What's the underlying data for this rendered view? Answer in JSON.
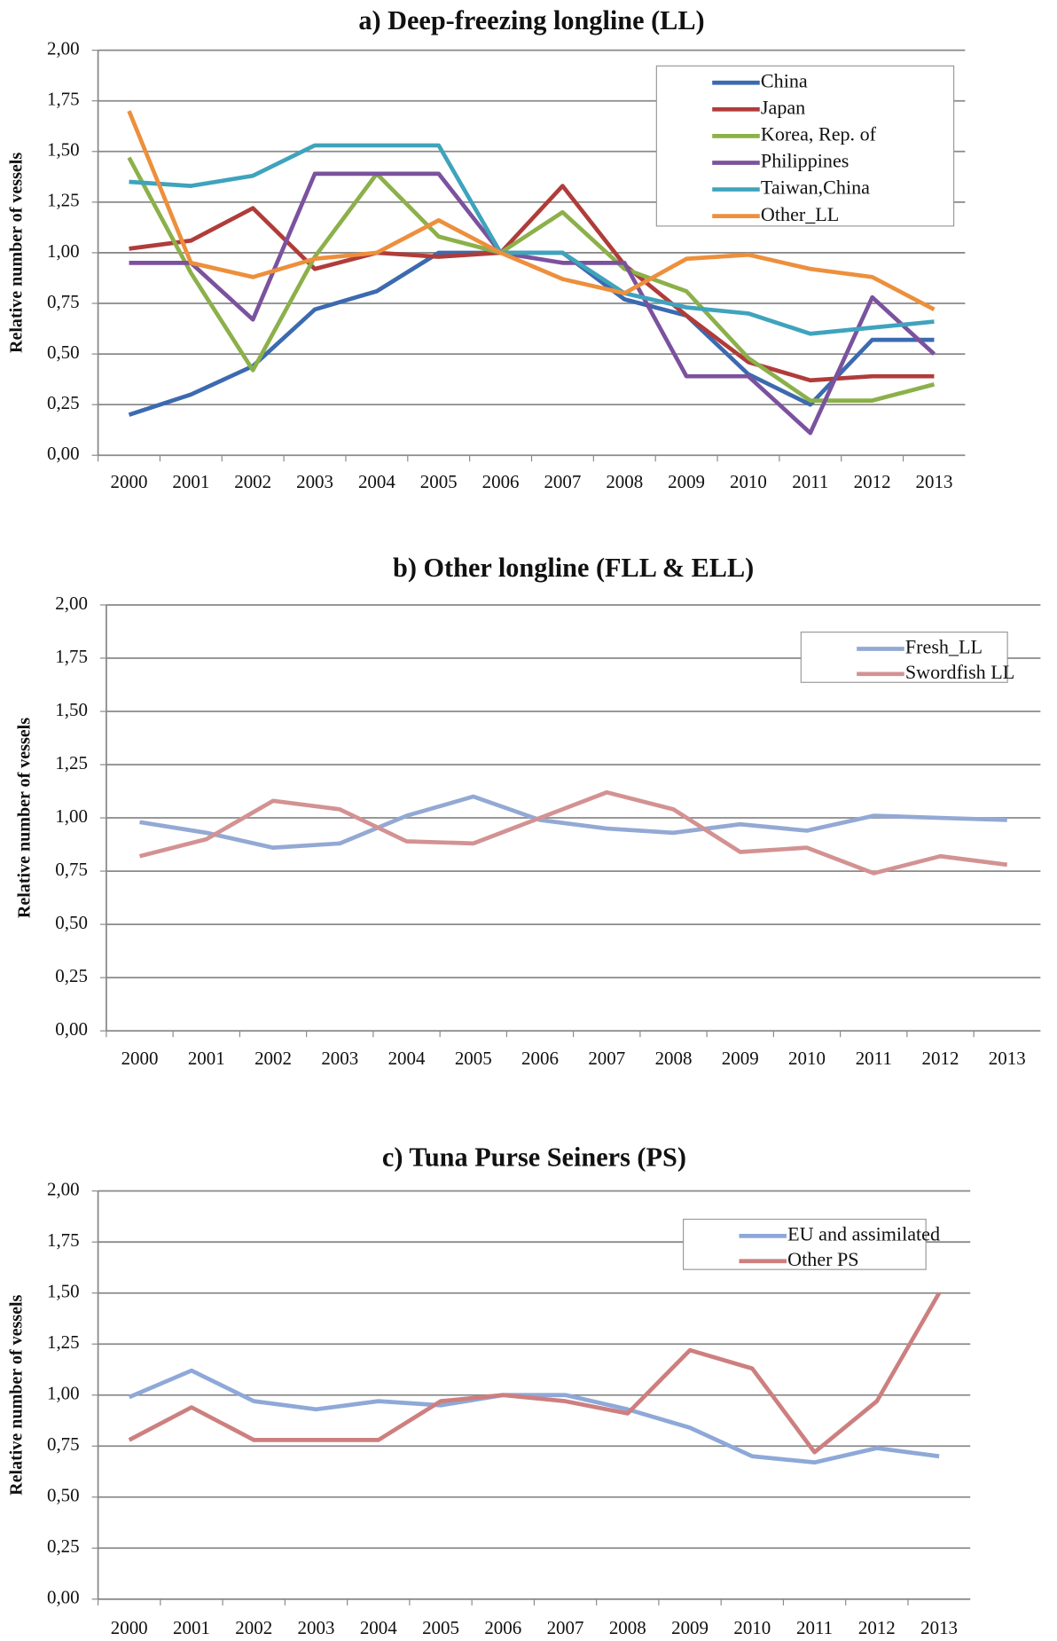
{
  "chart_data": [
    {
      "type": "line",
      "title": "a) Deep-freezing longline (LL)",
      "y_label": "Relative number of vessels",
      "categories": [
        "2000",
        "2001",
        "2002",
        "2003",
        "2004",
        "2005",
        "2006",
        "2007",
        "2008",
        "2009",
        "2010",
        "2011",
        "2012",
        "2013"
      ],
      "ylim": [
        0,
        2
      ],
      "yticks": [
        {
          "value": 0,
          "label": "0,00"
        },
        {
          "value": 0.25,
          "label": "0,25"
        },
        {
          "value": 0.5,
          "label": "0,50"
        },
        {
          "value": 0.75,
          "label": "0,75"
        },
        {
          "value": 1,
          "label": "1,00"
        },
        {
          "value": 1.25,
          "label": "1,25"
        },
        {
          "value": 1.5,
          "label": "1,50"
        },
        {
          "value": 1.75,
          "label": "1,75"
        },
        {
          "value": 2,
          "label": "2,00"
        }
      ],
      "grid": true,
      "legend": "upper right",
      "series": [
        {
          "name": "China",
          "color": "#3c6ab0",
          "values": [
            0.2,
            0.3,
            0.44,
            0.72,
            0.81,
            1.0,
            1.0,
            1.0,
            0.77,
            0.69,
            0.4,
            0.25,
            0.57,
            0.57
          ]
        },
        {
          "name": "Japan",
          "color": "#b03c3a",
          "values": [
            1.02,
            1.06,
            1.22,
            0.92,
            1.0,
            0.98,
            1.0,
            1.33,
            0.94,
            0.69,
            0.46,
            0.37,
            0.39,
            0.39
          ]
        },
        {
          "name": "Korea, Rep. of",
          "color": "#8cb04a",
          "values": [
            1.47,
            0.9,
            0.42,
            0.98,
            1.39,
            1.08,
            1.0,
            1.2,
            0.92,
            0.81,
            0.48,
            0.27,
            0.27,
            0.35
          ]
        },
        {
          "name": "Philippines",
          "color": "#7b529e",
          "values": [
            0.95,
            0.95,
            0.67,
            1.39,
            1.39,
            1.39,
            1.0,
            0.95,
            0.95,
            0.39,
            0.39,
            0.11,
            0.78,
            0.5
          ]
        },
        {
          "name": "Taiwan,China",
          "color": "#3fa3bc",
          "values": [
            1.35,
            1.33,
            1.38,
            1.53,
            1.53,
            1.53,
            1.0,
            1.0,
            0.8,
            0.73,
            0.7,
            0.6,
            0.63,
            0.66
          ]
        },
        {
          "name": "Other_LL",
          "color": "#ed8f3c",
          "values": [
            1.7,
            0.95,
            0.88,
            0.97,
            1.0,
            1.16,
            1.0,
            0.87,
            0.8,
            0.97,
            0.99,
            0.92,
            0.88,
            0.72
          ]
        }
      ]
    },
    {
      "type": "line",
      "title": "b) Other longline (FLL & ELL)",
      "y_label": "Relative number of vessels",
      "categories": [
        "2000",
        "2001",
        "2002",
        "2003",
        "2004",
        "2005",
        "2006",
        "2007",
        "2008",
        "2009",
        "2010",
        "2011",
        "2012",
        "2013"
      ],
      "ylim": [
        0,
        2
      ],
      "yticks": [
        {
          "value": 0,
          "label": "0,00"
        },
        {
          "value": 0.25,
          "label": "0,25"
        },
        {
          "value": 0.5,
          "label": "0,50"
        },
        {
          "value": 0.75,
          "label": "0,75"
        },
        {
          "value": 1,
          "label": "1,00"
        },
        {
          "value": 1.25,
          "label": "1,25"
        },
        {
          "value": 1.5,
          "label": "1,50"
        },
        {
          "value": 1.75,
          "label": "1,75"
        },
        {
          "value": 2,
          "label": "2,00"
        }
      ],
      "grid": true,
      "legend": "upper right",
      "series": [
        {
          "name": "Fresh_LL",
          "color": "#93a9d4",
          "values": [
            0.98,
            0.93,
            0.86,
            0.88,
            1.01,
            1.1,
            0.99,
            0.95,
            0.93,
            0.97,
            0.94,
            1.01,
            1.0,
            0.99
          ]
        },
        {
          "name": "Swordfish LL",
          "color": "#d39292",
          "values": [
            0.82,
            0.9,
            1.08,
            1.04,
            0.89,
            0.88,
            1.0,
            1.12,
            1.04,
            0.84,
            0.86,
            0.74,
            0.82,
            0.78
          ]
        }
      ]
    },
    {
      "type": "line",
      "title": "c) Tuna Purse Seiners (PS)",
      "y_label": "Relative number of vessels",
      "categories": [
        "2000",
        "2001",
        "2002",
        "2003",
        "2004",
        "2005",
        "2006",
        "2007",
        "2008",
        "2009",
        "2010",
        "2011",
        "2012",
        "2013"
      ],
      "ylim": [
        0,
        2
      ],
      "yticks": [
        {
          "value": 0,
          "label": "0,00"
        },
        {
          "value": 0.25,
          "label": "0,25"
        },
        {
          "value": 0.5,
          "label": "0,50"
        },
        {
          "value": 0.75,
          "label": "0,75"
        },
        {
          "value": 1,
          "label": "1,00"
        },
        {
          "value": 1.25,
          "label": "1,25"
        },
        {
          "value": 1.5,
          "label": "1,50"
        },
        {
          "value": 1.75,
          "label": "1,75"
        },
        {
          "value": 2,
          "label": "2,00"
        }
      ],
      "grid": true,
      "legend": "upper right",
      "series": [
        {
          "name": "EU and assimilated",
          "color": "#8ea8d8",
          "values": [
            0.99,
            1.12,
            0.97,
            0.93,
            0.97,
            0.95,
            1.0,
            1.0,
            0.93,
            0.84,
            0.7,
            0.67,
            0.74,
            0.7
          ]
        },
        {
          "name": "Other PS",
          "color": "#cd7f7f",
          "values": [
            0.78,
            0.94,
            0.78,
            0.78,
            0.78,
            0.97,
            1.0,
            0.97,
            0.91,
            1.22,
            1.13,
            0.72,
            0.97,
            1.5
          ]
        }
      ]
    }
  ]
}
